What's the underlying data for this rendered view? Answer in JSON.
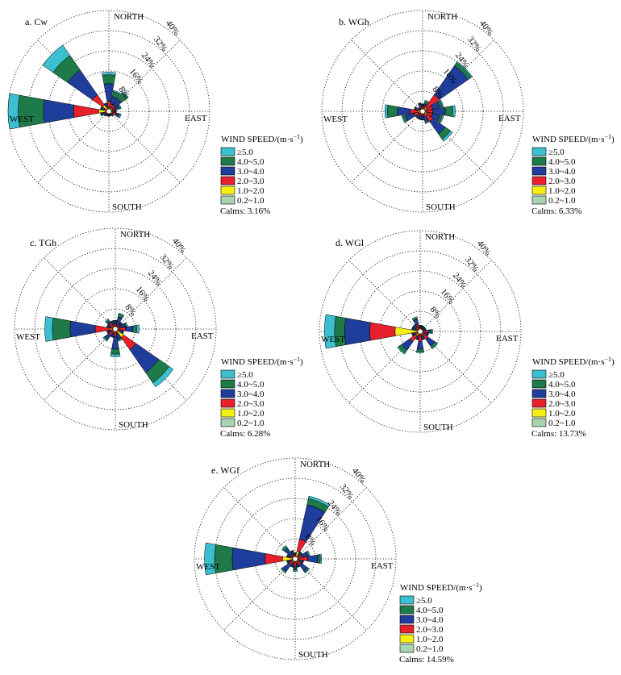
{
  "legend_title_text": "WIND SPEED/(m·s",
  "legend_title_exp": "−1",
  "legend_title_close": ")",
  "ring_labels": [
    "8%",
    "16%",
    "24%",
    "32%",
    "40%"
  ],
  "direction_labels": {
    "north": "NORTH",
    "east": "EAST",
    "south": "SOUTH",
    "west": "WEST"
  },
  "speed_classes": [
    {
      "label": "≥5.0",
      "color": "#3cbfcf"
    },
    {
      "label": "4.0~5.0",
      "color": "#1e7a48"
    },
    {
      "label": "3.0~4.0",
      "color": "#1f3d9a"
    },
    {
      "label": "2.0~3.0",
      "color": "#e8202a"
    },
    {
      "label": "1.0~2.0",
      "color": "#f4f014"
    },
    {
      "label": "0.2~1.0",
      "color": "#a8d4b2"
    }
  ],
  "chart_data": [
    {
      "type": "wind-rose",
      "title": "a. Cw",
      "calms": "Calms: 3.16%",
      "rmax_percent": 40,
      "ring_step_percent": 8,
      "directions": [
        "N",
        "NNE",
        "NE",
        "ENE",
        "E",
        "ESE",
        "SE",
        "SSE",
        "S",
        "SSW",
        "SW",
        "WSW",
        "W",
        "WNW",
        "NW",
        "NNW"
      ],
      "cumulative_percent": [
        [
          0.4,
          1.5,
          4,
          11,
          14.5,
          15.5
        ],
        [
          0.4,
          1.5,
          3,
          6,
          8,
          8.5
        ],
        [
          0.4,
          1.5,
          3,
          6,
          9,
          9.5
        ],
        [
          0.4,
          1.5,
          2.5,
          4,
          4.5,
          5
        ],
        [
          0.4,
          1.2,
          2,
          2.5,
          2.8,
          3
        ],
        [
          0.4,
          1.5,
          3,
          4,
          4.5,
          5
        ],
        [
          0.4,
          1,
          1.5,
          2,
          2.3,
          2.5
        ],
        [
          0.4,
          0.8,
          1.2,
          1.5,
          1.8,
          2
        ],
        [
          0.4,
          0.8,
          1.2,
          1.5,
          1.8,
          2
        ],
        [
          0.4,
          0.8,
          1.2,
          1.5,
          1.8,
          2
        ],
        [
          0.4,
          0.8,
          1.5,
          2,
          2.3,
          2.5
        ],
        [
          0.4,
          1,
          2,
          3,
          3.3,
          3.5
        ],
        [
          0.4,
          4,
          14,
          26,
          36,
          40
        ],
        [
          0.4,
          1,
          2,
          3,
          3.3,
          3.5
        ],
        [
          0.4,
          3,
          8,
          20,
          27,
          32
        ],
        [
          0.4,
          1,
          2,
          3,
          3.3,
          3.5
        ]
      ]
    },
    {
      "type": "wind-rose",
      "title": "b. WGh",
      "calms": "Calms: 6.33%",
      "rmax_percent": 40,
      "ring_step_percent": 8,
      "directions": [
        "N",
        "NNE",
        "NE",
        "ENE",
        "E",
        "ESE",
        "SE",
        "SSE",
        "S",
        "SSW",
        "SW",
        "WSW",
        "W",
        "WNW",
        "NW",
        "NNW"
      ],
      "cumulative_percent": [
        [
          0.4,
          1,
          2,
          2.5,
          2.8,
          3
        ],
        [
          0.4,
          1,
          2,
          3,
          4,
          4.5
        ],
        [
          0.4,
          2,
          8,
          22,
          23.5,
          24
        ],
        [
          0.4,
          1.5,
          4,
          7,
          8,
          8.5
        ],
        [
          0.4,
          1.5,
          4,
          9,
          12,
          13
        ],
        [
          0.4,
          1.5,
          4,
          7,
          8,
          8.5
        ],
        [
          0.4,
          2,
          5,
          11,
          13.5,
          14.5
        ],
        [
          0.4,
          1,
          2,
          4,
          4.5,
          5
        ],
        [
          0.4,
          1,
          2,
          3,
          3.3,
          3.5
        ],
        [
          0.4,
          1,
          2,
          3,
          3.3,
          3.5
        ],
        [
          0.4,
          1,
          2,
          3,
          3.3,
          3.5
        ],
        [
          0.4,
          1.5,
          3.5,
          7,
          8,
          8.5
        ],
        [
          0.4,
          2,
          5,
          10,
          14,
          15
        ],
        [
          0.4,
          1,
          2,
          3,
          3.3,
          3.5
        ],
        [
          0.4,
          0.8,
          1.2,
          1.5,
          1.8,
          2
        ],
        [
          0.4,
          1,
          2,
          3,
          3.3,
          3.5
        ]
      ]
    },
    {
      "type": "wind-rose",
      "title": "c. TGh",
      "calms": "Calms: 6.28%",
      "rmax_percent": 40,
      "ring_step_percent": 8,
      "directions": [
        "N",
        "NNE",
        "NE",
        "ENE",
        "E",
        "ESE",
        "SE",
        "SSE",
        "S",
        "SSW",
        "SW",
        "WSW",
        "W",
        "WNW",
        "NW",
        "NNW"
      ],
      "cumulative_percent": [
        [
          0.4,
          1,
          2,
          3,
          3.3,
          3.5
        ],
        [
          0.4,
          1,
          2,
          5,
          6,
          6.5
        ],
        [
          0.4,
          1,
          2,
          3,
          3.3,
          3.5
        ],
        [
          0.4,
          1,
          2,
          4,
          4.5,
          5
        ],
        [
          0.4,
          1.5,
          4,
          7,
          8.5,
          9.5
        ],
        [
          0.4,
          1,
          2,
          3,
          3.3,
          3.5
        ],
        [
          0.4,
          4,
          10,
          21,
          26,
          28
        ],
        [
          0.4,
          1,
          2,
          4,
          4.5,
          5
        ],
        [
          0.4,
          1.5,
          3,
          8,
          10,
          11
        ],
        [
          0.4,
          1,
          2,
          3,
          3.3,
          3.5
        ],
        [
          0.4,
          1.5,
          3,
          5,
          5.5,
          6
        ],
        [
          0.4,
          1,
          2,
          3,
          3.3,
          3.5
        ],
        [
          0.4,
          2,
          8,
          18,
          25,
          28
        ],
        [
          0.4,
          1,
          2,
          3,
          3.3,
          3.5
        ],
        [
          0.4,
          1.5,
          3,
          4,
          4.5,
          5
        ],
        [
          0.4,
          1,
          2,
          3,
          3.3,
          3.5
        ]
      ]
    },
    {
      "type": "wind-rose",
      "title": "d. WGl",
      "calms": "Calms: 13.73%",
      "rmax_percent": 40,
      "ring_step_percent": 8,
      "directions": [
        "N",
        "NNE",
        "NE",
        "ENE",
        "E",
        "ESE",
        "SE",
        "SSE",
        "S",
        "SSW",
        "SW",
        "WSW",
        "W",
        "WNW",
        "NW",
        "NNW"
      ],
      "cumulative_percent": [
        [
          0.4,
          1,
          1.5,
          2,
          2.3,
          2.5
        ],
        [
          0.4,
          1,
          1.5,
          2,
          2.3,
          2.5
        ],
        [
          0.4,
          1,
          1.5,
          2,
          2.3,
          2.5
        ],
        [
          0.4,
          1,
          1.5,
          2,
          2.3,
          2.5
        ],
        [
          0.4,
          1.5,
          3,
          4,
          4.5,
          5
        ],
        [
          0.4,
          1,
          2,
          3,
          3.3,
          3.5
        ],
        [
          0.4,
          1.5,
          4,
          7,
          8,
          8.5
        ],
        [
          0.4,
          1,
          2,
          3,
          3.3,
          3.5
        ],
        [
          0.4,
          1.5,
          4,
          7,
          8,
          8.5
        ],
        [
          0.4,
          1,
          2,
          3,
          3.3,
          3.5
        ],
        [
          0.4,
          2,
          5,
          9,
          10.5,
          11
        ],
        [
          0.4,
          1,
          2,
          3,
          3.3,
          3.5
        ],
        [
          0.4,
          10,
          20,
          30,
          34,
          38
        ],
        [
          0.4,
          1,
          2,
          3,
          3.3,
          3.5
        ],
        [
          0.4,
          1,
          2,
          3,
          3.3,
          3.5
        ],
        [
          0.4,
          1.5,
          3,
          5,
          5.5,
          6
        ]
      ]
    },
    {
      "type": "wind-rose",
      "title": "e. WGf",
      "calms": "Calms: 14.59%",
      "rmax_percent": 40,
      "ring_step_percent": 8,
      "directions": [
        "N",
        "NNE",
        "NE",
        "ENE",
        "E",
        "ESE",
        "SE",
        "SSE",
        "S",
        "SSW",
        "SW",
        "WSW",
        "W",
        "WNW",
        "NW",
        "NNW"
      ],
      "cumulative_percent": [
        [
          0.4,
          1,
          1.5,
          2,
          2.3,
          2.5
        ],
        [
          0.4,
          3,
          8,
          22,
          24.5,
          25.5
        ],
        [
          0.4,
          1,
          2,
          3,
          3.3,
          3.5
        ],
        [
          0.4,
          1.5,
          3,
          5,
          5.5,
          6
        ],
        [
          0.4,
          1.5,
          5,
          9,
          10,
          10.5
        ],
        [
          0.4,
          1,
          2,
          3,
          3.3,
          3.5
        ],
        [
          0.4,
          1.5,
          3,
          6,
          6.5,
          7
        ],
        [
          0.4,
          1,
          2,
          3,
          3.3,
          3.5
        ],
        [
          0.4,
          1.5,
          3,
          4,
          4.5,
          5
        ],
        [
          0.4,
          1,
          2,
          3,
          3.3,
          3.5
        ],
        [
          0.4,
          1.5,
          3,
          6,
          6.5,
          7
        ],
        [
          0.4,
          1,
          2,
          3,
          3.3,
          3.5
        ],
        [
          0.4,
          5,
          12,
          25,
          32,
          36
        ],
        [
          0.4,
          1,
          2,
          3,
          3.3,
          3.5
        ],
        [
          0.4,
          1,
          2,
          5,
          6,
          6.5
        ],
        [
          0.4,
          1,
          2,
          3,
          3.3,
          3.5
        ]
      ]
    }
  ]
}
